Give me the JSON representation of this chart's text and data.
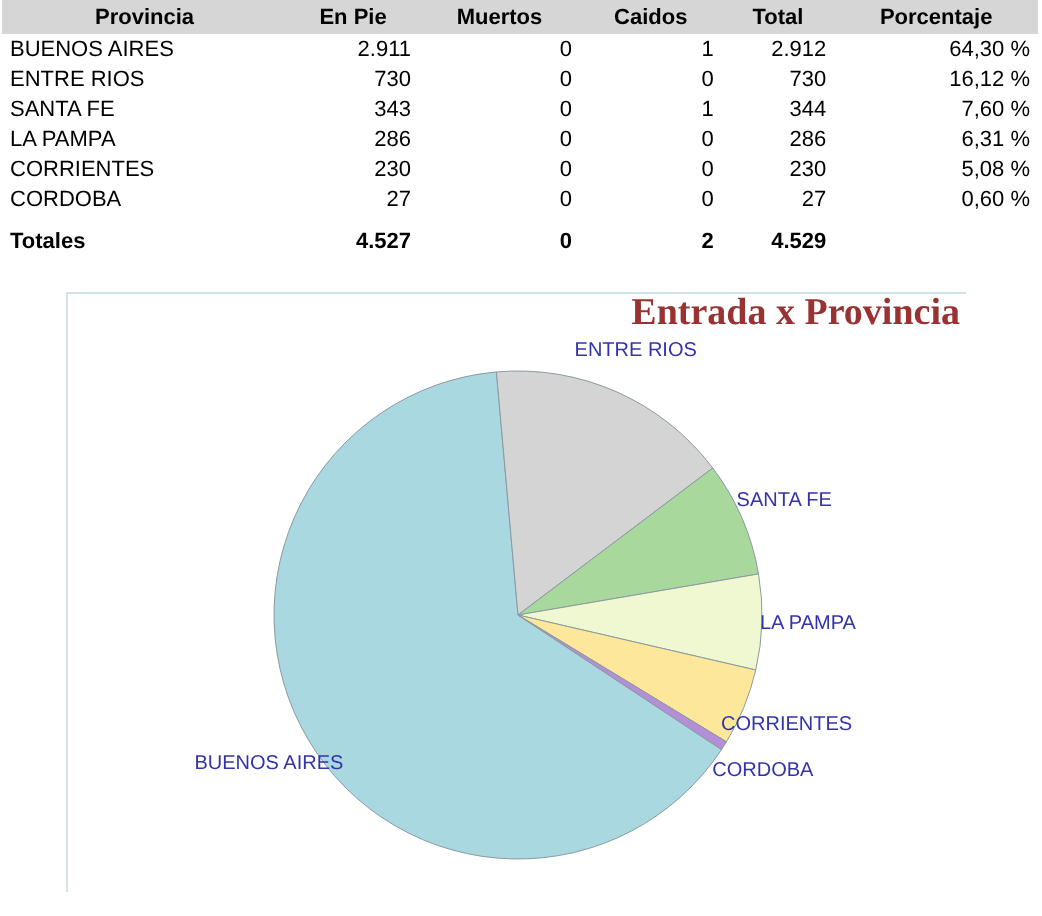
{
  "chart_data": [
    {
      "type": "other",
      "annotations": [
        "Provincia",
        "En Pie",
        "Muertos",
        "Caidos",
        "Total",
        "Porcentaje",
        "BUENOS AIRES",
        "2.911",
        "0",
        "1",
        "2.912",
        "64,30 %",
        "ENTRE RIOS",
        "730",
        "0",
        "0",
        "730",
        "16,12 %",
        "SANTA FE",
        "343",
        "0",
        "1",
        "344",
        "7,60 %",
        "LA PAMPA",
        "286",
        "0",
        "0",
        "286",
        "6,31 %",
        "CORRIENTES",
        "230",
        "0",
        "0",
        "230",
        "5,08 %",
        "CORDOBA",
        "27",
        "0",
        "0",
        "27",
        "0,60 %",
        "Totales",
        "4.527",
        "0",
        "2",
        "4.529"
      ]
    },
    {
      "type": "pie",
      "title": "Entrada x Provincia",
      "categories": [
        "BUENOS AIRES",
        "ENTRE RIOS",
        "SANTA FE",
        "LA PAMPA",
        "CORRIENTES",
        "CORDOBA"
      ],
      "values": [
        64.3,
        16.12,
        7.6,
        6.31,
        5.08,
        0.6
      ],
      "colors": [
        "#a9d8e0",
        "#d4d4d4",
        "#a8d89c",
        "#f0f8d2",
        "#fde79a",
        "#b48fd8"
      ]
    }
  ]
}
